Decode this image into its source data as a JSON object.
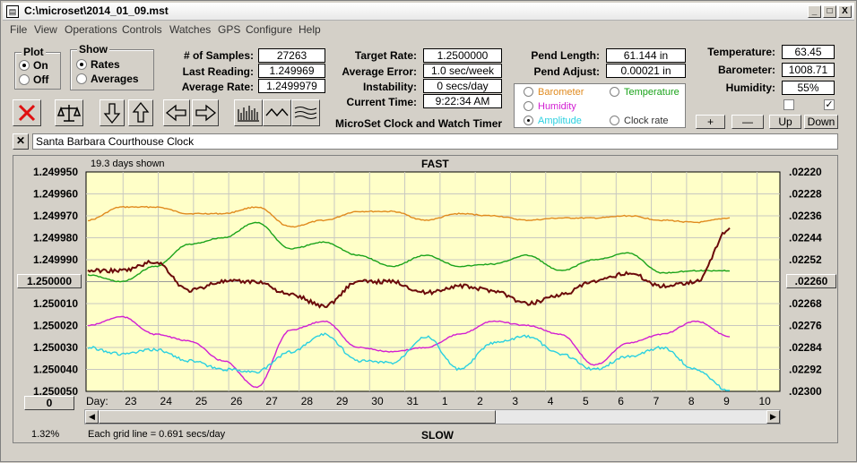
{
  "window": {
    "title": "C:\\microset\\2014_01_09.mst",
    "controls": {
      "minimize": "_",
      "maximize": "□",
      "close": "X"
    }
  },
  "menu": [
    "File",
    "View",
    "Operations",
    "Controls",
    "Watches",
    "GPS",
    "Configure",
    "Help"
  ],
  "plot_group": {
    "title": "Plot",
    "options": [
      "On",
      "Off"
    ],
    "selected": "On"
  },
  "show_group": {
    "title": "Show",
    "options": [
      "Rates",
      "Averages"
    ],
    "selected": "Rates"
  },
  "stats": {
    "samples_label": "# of Samples:",
    "samples": "27263",
    "last_label": "Last Reading:",
    "last": "1.249969",
    "avg_rate_label": "Average Rate:",
    "avg_rate": "1.2499979",
    "target_label": "Target Rate:",
    "target": "1.2500000",
    "avg_err_label": "Average Error:",
    "avg_err": "1.0 sec/week",
    "instab_label": "Instability:",
    "instab": "0 secs/day",
    "time_label": "Current Time:",
    "time": "9:22:34 AM",
    "app_name": "MicroSet Clock and Watch Timer",
    "pend_len_label": "Pend Length:",
    "pend_len": "61.144 in",
    "pend_adj_label": "Pend Adjust:",
    "pend_adj": "0.00021 in",
    "temp_label": "Temperature:",
    "temp": "63.45",
    "baro_label": "Barometer:",
    "baro": "1008.71",
    "hum_label": "Humidity:",
    "hum": "55%"
  },
  "legend": {
    "items": [
      {
        "label": "Barometer",
        "color": "#e08a1e",
        "selected": false
      },
      {
        "label": "Temperature",
        "color": "#1aa31a",
        "selected": false
      },
      {
        "label": "Humidity",
        "color": "#d21ed2",
        "selected": false
      },
      {
        "label": "Amplitude",
        "color": "#2ad0e0",
        "selected": true
      },
      {
        "label": "Clock rate",
        "color": "#333333",
        "selected": false
      }
    ]
  },
  "small_buttons": {
    "plus": "+",
    "minus": "—",
    "up": "Up",
    "down": "Down"
  },
  "toolbar_icons": [
    "stop-icon",
    "balance-icon",
    "arrow-down-icon",
    "arrow-up-icon",
    "arrow-left-icon",
    "arrow-right-icon",
    "bar-graph-icon",
    "wave-icon",
    "multi-wave-icon"
  ],
  "clock_name": "Santa Barbara Courthouse Clock",
  "chart_header": {
    "days_shown": "19.3 days shown",
    "fast": "FAST",
    "slow": "SLOW",
    "grid_note": "Each grid line = 0.691 secs/day",
    "percent": "1.32%",
    "left_bottom_btn": "0",
    "center_btn_left": "1.250000",
    "center_btn_right": ".02260"
  },
  "chart_data": {
    "type": "line",
    "xlabel": "Day:",
    "x_ticks": [
      "23",
      "24",
      "25",
      "26",
      "27",
      "28",
      "29",
      "30",
      "31",
      "1",
      "2",
      "3",
      "4",
      "5",
      "6",
      "7",
      "8",
      "9",
      "10"
    ],
    "y_left_ticks": [
      "1.249950",
      "1.249960",
      "1.249970",
      "1.249980",
      "1.249990",
      "1.250000",
      "1.250010",
      "1.250020",
      "1.250030",
      "1.250040",
      "1.250050"
    ],
    "y_right_ticks": [
      ".02220",
      ".02228",
      ".02236",
      ".02244",
      ".02252",
      ".02260",
      ".02268",
      ".02276",
      ".02284",
      ".02292",
      ".02300"
    ],
    "ylim_left": [
      1.24995,
      1.25005
    ],
    "grid": true,
    "series": [
      {
        "name": "Barometer",
        "color": "#e08a1e",
        "x_days": [
          0,
          1,
          2,
          3,
          4,
          5,
          6,
          7,
          8,
          9,
          10,
          11,
          12,
          13,
          14,
          15,
          16,
          17,
          18,
          19
        ],
        "y_rate": [
          1.249972,
          1.249966,
          1.249966,
          1.249969,
          1.249969,
          1.249966,
          1.249975,
          1.249972,
          1.249968,
          1.249968,
          1.249972,
          1.249969,
          1.24997,
          1.249972,
          1.249971,
          1.249971,
          1.24997,
          1.249972,
          1.249973,
          1.249971
        ]
      },
      {
        "name": "Temperature",
        "color": "#1aa31a",
        "x_days": [
          0,
          1,
          2,
          3,
          4,
          5,
          6,
          7,
          8,
          9,
          10,
          11,
          12,
          13,
          14,
          15,
          16,
          17,
          18,
          19
        ],
        "y_rate": [
          1.249997,
          1.25,
          1.249993,
          1.249983,
          1.24998,
          1.249973,
          1.249985,
          1.249982,
          1.249988,
          1.249993,
          1.249988,
          1.249993,
          1.249992,
          1.249988,
          1.249995,
          1.24999,
          1.249987,
          1.249996,
          1.249995,
          1.249995
        ]
      },
      {
        "name": "Clock rate",
        "color": "#6b0a0a",
        "x_days": [
          0,
          1,
          2,
          3,
          4,
          5,
          6,
          7,
          8,
          9,
          10,
          11,
          12,
          13,
          14,
          15,
          16,
          17,
          18,
          19
        ],
        "y_rate": [
          1.249995,
          1.249995,
          1.249991,
          1.250004,
          1.25,
          1.25,
          1.250006,
          1.250011,
          1.25,
          1.25,
          1.250005,
          1.250002,
          1.250004,
          1.25001,
          1.250006,
          1.25,
          1.249996,
          1.250002,
          1.25,
          1.249976
        ]
      },
      {
        "name": "Humidity",
        "color": "#d21ed2",
        "x_days": [
          0,
          1,
          2,
          3,
          4,
          5,
          6,
          7,
          8,
          9,
          10,
          11,
          12,
          13,
          14,
          15,
          16,
          17,
          18,
          19
        ],
        "y_rate": [
          1.25002,
          1.250016,
          1.250024,
          1.250027,
          1.250036,
          1.250048,
          1.250022,
          1.250018,
          1.25003,
          1.250032,
          1.25003,
          1.250024,
          1.250018,
          1.25002,
          1.250024,
          1.250038,
          1.250028,
          1.250024,
          1.250018,
          1.250025
        ]
      },
      {
        "name": "Amplitude",
        "color": "#2ad0e0",
        "x_days": [
          0,
          1,
          2,
          3,
          4,
          5,
          6,
          7,
          8,
          9,
          10,
          11,
          12,
          13,
          14,
          15,
          16,
          17,
          18,
          19
        ],
        "y_rate": [
          1.25003,
          1.250033,
          1.250031,
          1.250036,
          1.25004,
          1.250041,
          1.250032,
          1.250024,
          1.250036,
          1.250037,
          1.250025,
          1.25004,
          1.250028,
          1.250025,
          1.250033,
          1.25004,
          1.250034,
          1.25003,
          1.25004,
          1.25005
        ]
      }
    ]
  }
}
